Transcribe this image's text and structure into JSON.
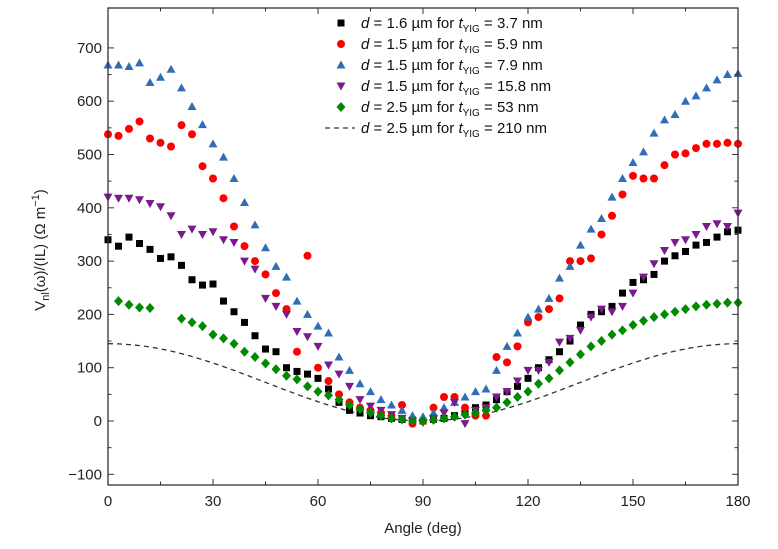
{
  "chart_data": {
    "type": "scatter",
    "title": "",
    "xlabel": "Angle (deg)",
    "ylabel_parts": {
      "base": "V",
      "sub": "nl",
      "rest": "(ω)/(IL) (Ω m",
      "sup": "−1",
      "close": ")"
    },
    "xlim": [
      0,
      180
    ],
    "ylim": [
      -120,
      760
    ],
    "xticks": [
      0,
      30,
      60,
      90,
      120,
      150,
      180
    ],
    "yticks": [
      -100,
      0,
      100,
      200,
      300,
      400,
      500,
      600,
      700
    ],
    "grid": false,
    "legend_position": "top-center",
    "series": [
      {
        "name": "d = 1.6 µm for tYIG = 3.7 nm",
        "legend": {
          "pre": "d",
          "mid": " = 1.6 µm for ",
          "t": "t",
          "sub": "YIG",
          "post": " = 3.7 nm"
        },
        "marker": "square",
        "color": "#000000",
        "x": [
          0,
          3,
          6,
          9,
          12,
          15,
          18,
          21,
          24,
          27,
          30,
          33,
          36,
          39,
          42,
          45,
          48,
          51,
          54,
          57,
          60,
          63,
          66,
          69,
          72,
          75,
          78,
          81,
          84,
          87,
          90,
          93,
          96,
          99,
          102,
          105,
          108,
          111,
          114,
          117,
          120,
          123,
          126,
          129,
          132,
          135,
          138,
          141,
          144,
          147,
          150,
          153,
          156,
          159,
          162,
          165,
          168,
          171,
          174,
          177,
          180
        ],
        "y": [
          340,
          328,
          345,
          333,
          322,
          305,
          308,
          292,
          265,
          255,
          257,
          225,
          205,
          185,
          160,
          135,
          130,
          100,
          93,
          88,
          80,
          60,
          35,
          20,
          15,
          10,
          8,
          5,
          3,
          2,
          0,
          3,
          5,
          10,
          18,
          25,
          30,
          40,
          55,
          65,
          80,
          100,
          115,
          130,
          150,
          180,
          200,
          205,
          215,
          240,
          260,
          265,
          275,
          300,
          310,
          318,
          330,
          335,
          345,
          355,
          358
        ]
      },
      {
        "name": "d = 1.5 µm for tYIG = 5.9 nm",
        "legend": {
          "pre": "d",
          "mid": " = 1.5 µm for ",
          "t": "t",
          "sub": "YIG",
          "post": " = 5.9 nm"
        },
        "marker": "circle",
        "color": "#ff0000",
        "x": [
          0,
          3,
          6,
          9,
          12,
          15,
          18,
          21,
          24,
          27,
          30,
          33,
          36,
          39,
          42,
          45,
          48,
          51,
          54,
          57,
          60,
          63,
          66,
          69,
          72,
          75,
          78,
          81,
          84,
          87,
          90,
          93,
          96,
          99,
          102,
          105,
          108,
          111,
          114,
          117,
          120,
          123,
          126,
          129,
          132,
          135,
          138,
          141,
          144,
          147,
          150,
          153,
          156,
          159,
          162,
          165,
          168,
          171,
          174,
          177,
          180
        ],
        "y": [
          538,
          535,
          548,
          562,
          530,
          522,
          515,
          555,
          538,
          478,
          455,
          418,
          365,
          328,
          300,
          275,
          240,
          210,
          130,
          310,
          100,
          75,
          50,
          35,
          25,
          20,
          15,
          10,
          30,
          -5,
          0,
          25,
          45,
          45,
          25,
          10,
          10,
          120,
          110,
          140,
          185,
          195,
          210,
          230,
          300,
          300,
          305,
          350,
          385,
          425,
          460,
          455,
          455,
          480,
          500,
          502,
          512,
          520,
          520,
          522,
          520
        ]
      },
      {
        "name": "d = 1.5 µm for tYIG = 7.9 nm",
        "legend": {
          "pre": "d",
          "mid": " = 1.5 µm for ",
          "t": "t",
          "sub": "YIG",
          "post": " = 7.9 nm"
        },
        "marker": "triangle-up",
        "color": "#2f6db5",
        "x": [
          0,
          3,
          6,
          9,
          12,
          15,
          18,
          21,
          24,
          27,
          30,
          33,
          36,
          39,
          42,
          45,
          48,
          51,
          54,
          57,
          60,
          63,
          66,
          69,
          72,
          75,
          78,
          81,
          84,
          87,
          90,
          93,
          96,
          99,
          102,
          105,
          108,
          111,
          114,
          117,
          120,
          123,
          126,
          129,
          132,
          135,
          138,
          141,
          144,
          147,
          150,
          153,
          156,
          159,
          162,
          165,
          168,
          171,
          174,
          177,
          180
        ],
        "y": [
          668,
          668,
          665,
          672,
          635,
          645,
          660,
          625,
          590,
          556,
          520,
          495,
          455,
          410,
          368,
          325,
          290,
          270,
          225,
          200,
          178,
          165,
          120,
          95,
          70,
          55,
          40,
          30,
          20,
          10,
          8,
          15,
          25,
          35,
          45,
          55,
          60,
          95,
          140,
          165,
          195,
          210,
          230,
          268,
          290,
          330,
          360,
          380,
          420,
          455,
          485,
          505,
          540,
          565,
          575,
          600,
          610,
          625,
          640,
          650,
          652
        ]
      },
      {
        "name": "d = 1.5 µm for tYIG = 15.8 nm",
        "legend": {
          "pre": "d",
          "mid": " = 1.5 µm for ",
          "t": "t",
          "sub": "YIG",
          "post": " = 15.8 nm"
        },
        "marker": "triangle-down",
        "color": "#7a1a8c",
        "x": [
          0,
          3,
          6,
          9,
          12,
          15,
          18,
          21,
          24,
          27,
          30,
          33,
          36,
          39,
          42,
          45,
          48,
          51,
          54,
          57,
          60,
          63,
          66,
          69,
          72,
          75,
          78,
          81,
          84,
          87,
          90,
          93,
          96,
          99,
          102,
          105,
          108,
          111,
          114,
          117,
          120,
          123,
          126,
          129,
          132,
          135,
          138,
          141,
          144,
          147,
          150,
          153,
          156,
          159,
          162,
          165,
          168,
          171,
          174,
          177,
          180
        ],
        "y": [
          420,
          418,
          418,
          415,
          408,
          402,
          385,
          350,
          360,
          350,
          355,
          340,
          335,
          300,
          285,
          230,
          215,
          200,
          168,
          158,
          140,
          105,
          88,
          65,
          40,
          28,
          20,
          12,
          5,
          0,
          -3,
          5,
          15,
          35,
          -5,
          20,
          25,
          45,
          55,
          75,
          95,
          95,
          110,
          148,
          155,
          170,
          195,
          210,
          205,
          215,
          240,
          270,
          295,
          320,
          335,
          340,
          350,
          365,
          370,
          365,
          390
        ]
      },
      {
        "name": "d = 2.5 µm for tYIG = 53 nm",
        "legend": {
          "pre": "d",
          "mid": " = 2.5 µm for ",
          "t": "t",
          "sub": "YIG",
          "post": " = 53 nm"
        },
        "marker": "diamond",
        "color": "#008a00",
        "x": [
          3,
          6,
          9,
          12,
          21,
          24,
          27,
          30,
          33,
          36,
          39,
          42,
          45,
          48,
          51,
          54,
          57,
          60,
          63,
          66,
          69,
          72,
          75,
          78,
          81,
          84,
          87,
          90,
          93,
          96,
          99,
          102,
          105,
          108,
          111,
          114,
          117,
          120,
          123,
          126,
          129,
          132,
          135,
          138,
          141,
          144,
          147,
          150,
          153,
          156,
          159,
          162,
          165,
          168,
          171,
          174,
          177,
          180
        ],
        "y": [
          225,
          218,
          213,
          212,
          192,
          185,
          178,
          162,
          155,
          145,
          130,
          120,
          108,
          97,
          85,
          78,
          65,
          55,
          48,
          40,
          30,
          22,
          15,
          10,
          5,
          3,
          0,
          0,
          2,
          5,
          8,
          12,
          15,
          20,
          25,
          35,
          45,
          55,
          70,
          80,
          95,
          110,
          125,
          140,
          150,
          162,
          170,
          180,
          188,
          195,
          200,
          205,
          210,
          215,
          218,
          220,
          222,
          222
        ]
      }
    ],
    "reference_line": {
      "name": "d = 2.5 µm for tYIG = 210 nm",
      "legend": {
        "pre": "d",
        "mid": " = 2.5 µm for ",
        "t": "t",
        "sub": "YIG",
        "post": " = 210 nm"
      },
      "style": "dashed",
      "color": "#333333",
      "amplitude": 145,
      "form": "A*cos^2(angle)"
    }
  }
}
